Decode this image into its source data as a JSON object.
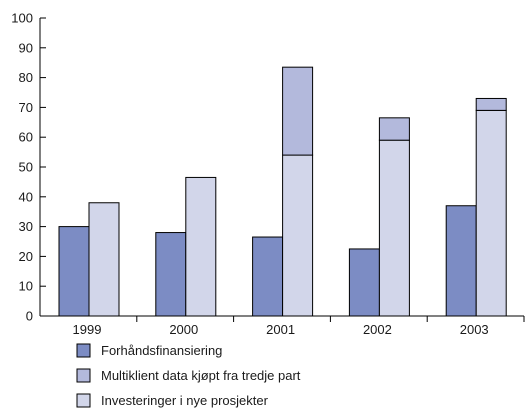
{
  "chart_data": {
    "type": "bar",
    "stacked": true,
    "title": "",
    "xlabel": "",
    "ylabel": "",
    "categories": [
      "1999",
      "2000",
      "2001",
      "2002",
      "2003"
    ],
    "ylim": [
      0,
      100
    ],
    "yticks": [
      0,
      10,
      20,
      30,
      40,
      50,
      60,
      70,
      80,
      90,
      100
    ],
    "grid": false,
    "legend_position": "bottom",
    "series": [
      {
        "name": "Forhåndsfinansiering",
        "color": "#7c8cc4",
        "group": "left",
        "values": [
          30,
          28,
          26.5,
          22.5,
          37
        ]
      },
      {
        "name": "Multiklient data kjøpt fra tredje part",
        "color": "#b3b9dc",
        "group": "right",
        "values": [
          0,
          0,
          29.5,
          7.5,
          4
        ]
      },
      {
        "name": "Investeringer i nye prosjekter",
        "color": "#d2d6ea",
        "group": "right",
        "values": [
          38,
          46.5,
          54,
          59,
          69
        ]
      }
    ]
  }
}
